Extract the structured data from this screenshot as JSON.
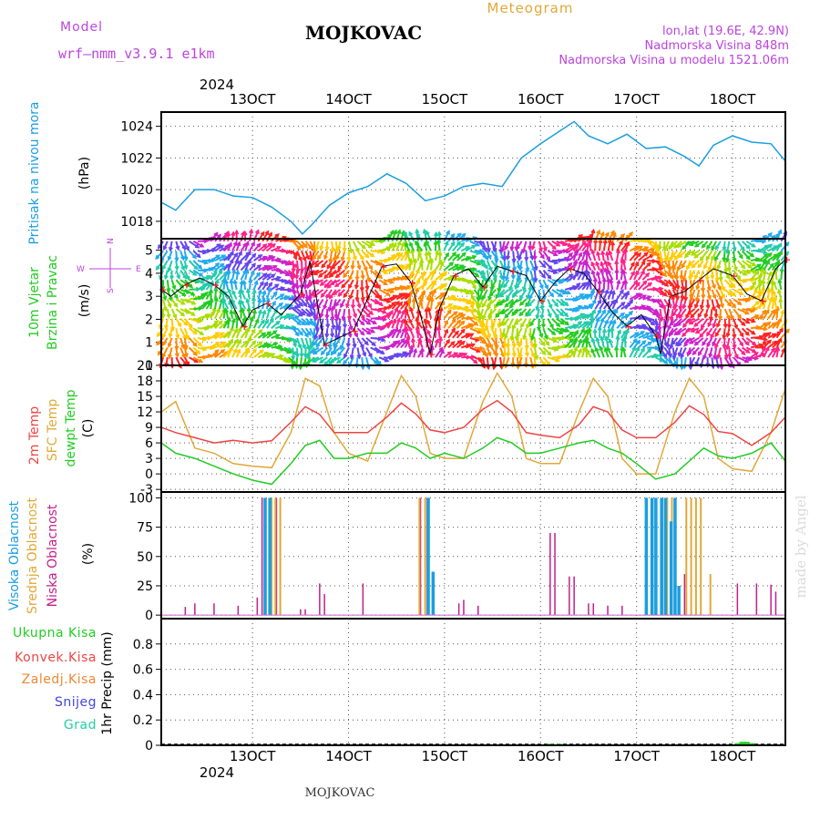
{
  "header": {
    "model_label": "Model",
    "model_name": "wrf—nmm_v3.9.1  e1km",
    "station": "MOJKOVAC",
    "meteogram": "Meteogram",
    "lonlat": "lon,lat (19.6E, 42.9N)",
    "altitude": "Nadmorska Visina 848m",
    "model_altitude": "Nadmorska Visina u modelu 1521.06m",
    "footer_station": "MOJKOVAC",
    "watermark": "made by Angel"
  },
  "colors": {
    "pressure": "#1a9ee0",
    "temp2m": "#ee4444",
    "sfc": "#e0a838",
    "dewpt": "#22cc22",
    "high_cloud": "#1a9ee0",
    "mid_cloud": "#e0a838",
    "low_cloud": "#c0208a",
    "wind_label": "#22cc22",
    "rose": "#bb44dd",
    "total_precip": "#22cc22",
    "conv_precip": "#ee4444",
    "frozen_precip": "#ee8833",
    "snow": "#4444dd",
    "hail": "#22ccaa"
  },
  "axis_x": {
    "year": "2024",
    "ticks": [
      "13OCT",
      "14OCT",
      "15OCT",
      "16OCT",
      "17OCT",
      "18OCT"
    ],
    "tick_days": [
      13,
      14,
      15,
      16,
      17,
      18
    ],
    "range_days": [
      12.05,
      18.55
    ]
  },
  "panels": {
    "pressure": {
      "ylabel": "Pritisak na nivou mora",
      "unit": "(hPa)",
      "yticks": [
        "1018",
        "1020",
        "1022",
        "1024"
      ],
      "ylim": [
        1016.9,
        1024.9
      ]
    },
    "wind": {
      "ylabel1": "10m Vjetar",
      "ylabel2": "Brzina i Pravac",
      "unit": "(m/s)",
      "yticks": [
        "0",
        "1",
        "2",
        "3",
        "4",
        "5"
      ],
      "ylim": [
        0,
        5.5
      ],
      "rose": {
        "n": "N",
        "s": "S",
        "w": "W",
        "e": "E"
      }
    },
    "temperature": {
      "ylabel1": "2m Temp",
      "ylabel2": "SFC Temp",
      "ylabel3": "dewpt Temp",
      "unit": "(C)",
      "yticks": [
        "-3",
        "0",
        "3",
        "6",
        "9",
        "12",
        "15",
        "18",
        "21"
      ],
      "ylim": [
        -3.5,
        21
      ]
    },
    "cloud": {
      "ylabel1": "Visoka Oblacnost",
      "ylabel2": "Srednja Oblacnost",
      "ylabel3": "Niska Oblacnost",
      "unit": "(%)",
      "yticks": [
        "0",
        "25",
        "50",
        "75",
        "100"
      ],
      "ylim": [
        -3,
        105
      ]
    },
    "precip": {
      "labels": [
        "Ukupna Kisa",
        "Konvek.Kisa",
        "Zaledj.Kisa",
        "Snijeg",
        "Grad"
      ],
      "unit": "1hr Precip (mm)",
      "yticks": [
        "0",
        "0.2",
        "0.4",
        "0.6",
        "0.8"
      ],
      "ylim": [
        0,
        1
      ]
    }
  },
  "chart_data": [
    {
      "type": "line",
      "name": "pressure",
      "x": [
        12.05,
        12.2,
        12.4,
        12.6,
        12.8,
        13.0,
        13.2,
        13.4,
        13.52,
        13.62,
        13.8,
        14.0,
        14.2,
        14.4,
        14.6,
        14.8,
        15.0,
        15.2,
        15.4,
        15.6,
        15.8,
        16.0,
        16.2,
        16.35,
        16.5,
        16.7,
        16.9,
        17.1,
        17.3,
        17.5,
        17.65,
        17.8,
        18.0,
        18.2,
        18.4,
        18.55
      ],
      "y": [
        1019.2,
        1018.7,
        1020.0,
        1020.0,
        1019.6,
        1019.5,
        1018.9,
        1018.0,
        1017.2,
        1017.8,
        1019.0,
        1019.8,
        1020.2,
        1021.0,
        1020.4,
        1019.3,
        1019.6,
        1020.2,
        1020.4,
        1020.2,
        1022.0,
        1022.9,
        1023.7,
        1024.3,
        1023.4,
        1022.9,
        1023.5,
        1022.6,
        1022.7,
        1022.1,
        1021.5,
        1022.8,
        1023.4,
        1023.0,
        1022.9,
        1021.8
      ]
    },
    {
      "type": "line",
      "name": "wind",
      "x": [
        12.05,
        12.15,
        12.3,
        12.45,
        12.6,
        12.75,
        12.9,
        13.0,
        13.15,
        13.3,
        13.5,
        13.6,
        13.75,
        13.9,
        14.05,
        14.2,
        14.35,
        14.5,
        14.65,
        14.75,
        14.85,
        14.95,
        15.1,
        15.25,
        15.4,
        15.55,
        15.7,
        15.85,
        16.0,
        16.15,
        16.3,
        16.45,
        16.6,
        16.75,
        16.9,
        17.05,
        17.2,
        17.25,
        17.35,
        17.5,
        17.65,
        17.8,
        18.0,
        18.15,
        18.3,
        18.45,
        18.55
      ],
      "y": [
        3.3,
        3.0,
        3.5,
        3.8,
        3.5,
        3.0,
        1.7,
        2.4,
        2.7,
        2.2,
        3.1,
        4.5,
        0.9,
        1.2,
        1.5,
        2.9,
        4.3,
        4.4,
        3.6,
        2.2,
        0.5,
        2.5,
        3.9,
        4.2,
        3.4,
        4.3,
        4.1,
        3.9,
        2.8,
        3.6,
        4.2,
        4.0,
        3.2,
        2.3,
        1.7,
        2.2,
        1.3,
        0.5,
        3.0,
        3.2,
        3.7,
        4.2,
        3.9,
        3.1,
        2.8,
        4.2,
        4.6
      ]
    },
    {
      "type": "line",
      "name": "temperature",
      "x": [
        12.05,
        12.2,
        12.4,
        12.6,
        12.8,
        13.0,
        13.2,
        13.4,
        13.55,
        13.7,
        13.85,
        14.0,
        14.2,
        14.4,
        14.55,
        14.7,
        14.85,
        15.0,
        15.2,
        15.4,
        15.55,
        15.7,
        15.85,
        16.0,
        16.2,
        16.4,
        16.55,
        16.7,
        16.85,
        17.0,
        17.2,
        17.4,
        17.55,
        17.7,
        17.85,
        18.0,
        18.2,
        18.4,
        18.55
      ],
      "temp2m": [
        9,
        8,
        7,
        6,
        6.5,
        6.0,
        6.4,
        10.0,
        13.0,
        11.5,
        8.0,
        8.0,
        8.0,
        11.0,
        13.7,
        11.6,
        8.5,
        8.0,
        9.0,
        12.5,
        14.2,
        12.0,
        8.0,
        7.5,
        7.0,
        9.5,
        13.0,
        12.0,
        8.5,
        7.0,
        7.0,
        10.0,
        13.2,
        11.5,
        8.2,
        7.8,
        5.5,
        8.0,
        11.0
      ],
      "sfc": [
        12,
        14,
        5,
        4,
        2,
        1.5,
        1.2,
        8.0,
        18.5,
        17.0,
        8.0,
        4.0,
        2.5,
        12.0,
        19.0,
        15.0,
        4.0,
        3.0,
        3.0,
        14.0,
        19.5,
        15.0,
        3.0,
        2.0,
        2.0,
        12.0,
        18.5,
        15.0,
        3.0,
        0.0,
        0.0,
        12.0,
        18.5,
        15.0,
        3.0,
        1.0,
        0.5,
        8.0,
        16.5
      ],
      "dewpt": [
        6,
        4,
        3,
        1.5,
        0,
        -1.2,
        -2.0,
        2.0,
        5.5,
        6.5,
        3.0,
        3.0,
        4.0,
        4.0,
        6.0,
        5.0,
        3.0,
        4.0,
        3.0,
        5.0,
        7.0,
        6.0,
        4.0,
        4.0,
        5.0,
        6.0,
        6.5,
        5.0,
        4.0,
        2.0,
        -1.0,
        0.0,
        2.5,
        5.0,
        3.5,
        3.0,
        4.0,
        6.0,
        2.5
      ]
    },
    {
      "type": "bar",
      "name": "cloud",
      "low": [
        [
          12.3,
          7
        ],
        [
          12.4,
          10
        ],
        [
          12.6,
          10
        ],
        [
          12.85,
          8
        ],
        [
          13.05,
          15
        ],
        [
          13.1,
          100
        ],
        [
          13.25,
          100
        ],
        [
          13.5,
          5
        ],
        [
          13.55,
          5
        ],
        [
          13.7,
          27
        ],
        [
          13.75,
          18
        ],
        [
          14.15,
          27
        ],
        [
          14.75,
          100
        ],
        [
          14.82,
          100
        ],
        [
          15.15,
          10
        ],
        [
          15.2,
          13
        ],
        [
          15.35,
          8
        ],
        [
          16.1,
          70
        ],
        [
          16.15,
          70
        ],
        [
          16.3,
          33
        ],
        [
          16.35,
          33
        ],
        [
          16.5,
          10
        ],
        [
          16.55,
          10
        ],
        [
          16.7,
          8
        ],
        [
          16.85,
          8
        ],
        [
          17.1,
          100
        ],
        [
          17.2,
          90
        ],
        [
          17.3,
          58
        ],
        [
          17.5,
          35
        ],
        [
          18.05,
          27
        ],
        [
          18.25,
          27
        ],
        [
          18.4,
          26
        ],
        [
          18.45,
          20
        ]
      ],
      "mid": [
        [
          13.12,
          100
        ],
        [
          13.18,
          100
        ],
        [
          13.22,
          100
        ],
        [
          13.27,
          100
        ],
        [
          14.72,
          100
        ],
        [
          14.78,
          100
        ],
        [
          17.15,
          100
        ],
        [
          17.25,
          100
        ],
        [
          17.3,
          100
        ],
        [
          17.35,
          100
        ],
        [
          17.5,
          100
        ],
        [
          17.55,
          100
        ],
        [
          17.6,
          100
        ],
        [
          17.65,
          100
        ],
        [
          17.75,
          35
        ]
      ],
      "high": [
        [
          13.15,
          100
        ],
        [
          13.2,
          100
        ],
        [
          14.85,
          100
        ],
        [
          14.9,
          37
        ],
        [
          17.12,
          100
        ],
        [
          17.18,
          100
        ],
        [
          17.22,
          100
        ],
        [
          17.28,
          100
        ],
        [
          17.32,
          100
        ],
        [
          17.38,
          80
        ],
        [
          17.42,
          100
        ],
        [
          17.46,
          25
        ]
      ]
    },
    {
      "type": "bar",
      "name": "precip",
      "total": [
        [
          16.1,
          0.004
        ],
        [
          16.2,
          0.004
        ],
        [
          18.05,
          0.01
        ],
        [
          18.1,
          0.02
        ],
        [
          18.15,
          0.02
        ],
        [
          18.2,
          0.01
        ]
      ]
    }
  ]
}
